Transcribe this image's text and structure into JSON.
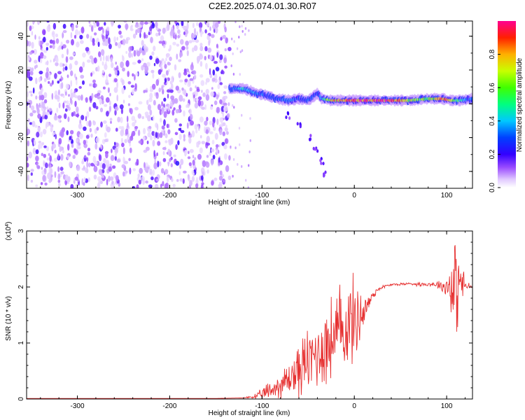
{
  "title": "C2E2.2025.074.01.30.R07",
  "chart_data": [
    {
      "type": "heatmap",
      "title": "C2E2.2025.074.01.30.R07",
      "xlabel": "Height of straight line (km)",
      "ylabel": "Frequency (Hz)",
      "xlim": [
        -355,
        128
      ],
      "ylim": [
        -50,
        49
      ],
      "xticks": [
        -300,
        -200,
        -100,
        0,
        100
      ],
      "xtick_labels": [
        "-300",
        "-200",
        "-100",
        "0",
        "100"
      ],
      "yticks": [
        -40,
        -20,
        0,
        20,
        40
      ],
      "ytick_labels": [
        "-40",
        "-20",
        "0",
        "20",
        "40"
      ],
      "noise_region_x": [
        -355,
        -135
      ],
      "ridge": [
        [
          -135,
          9
        ],
        [
          -120,
          9
        ],
        [
          -105,
          6
        ],
        [
          -95,
          5
        ],
        [
          -85,
          3
        ],
        [
          -70,
          2
        ],
        [
          -60,
          3
        ],
        [
          -50,
          2
        ],
        [
          -40,
          6
        ],
        [
          -35,
          3
        ],
        [
          -25,
          2
        ],
        [
          -10,
          2
        ],
        [
          0,
          2
        ],
        [
          20,
          2
        ],
        [
          40,
          2
        ],
        [
          60,
          2
        ],
        [
          80,
          3
        ],
        [
          95,
          3
        ],
        [
          105,
          2
        ],
        [
          115,
          2
        ],
        [
          128,
          3
        ]
      ],
      "ridge_amplitude": [
        0.3,
        0.45,
        0.35,
        0.3,
        0.3,
        0.35,
        0.3,
        0.3,
        0.3,
        0.4,
        0.8,
        0.9,
        0.95,
        0.95,
        0.95,
        0.7,
        0.6,
        0.9,
        0.7,
        0.5,
        0.3
      ],
      "streak": [
        [
          -72,
          -7
        ],
        [
          -60,
          -13
        ],
        [
          -48,
          -20
        ],
        [
          -42,
          -27
        ],
        [
          -36,
          -34
        ],
        [
          -32,
          -42
        ]
      ],
      "colorbar": {
        "label": "Normalized spectral amplitude",
        "range": [
          0,
          1
        ],
        "ticks": [
          0,
          0.2,
          0.4,
          0.6,
          0.8
        ],
        "tick_labels": [
          "0.0",
          "0.2",
          "0.4",
          "0.6",
          "0.8"
        ]
      }
    },
    {
      "type": "line",
      "xlabel": "Height of straight line (km)",
      "ylabel": "SNR (10 * v/v)",
      "y_scale_label": "(x10",
      "y_scale_exp": "4",
      "xlim": [
        -355,
        128
      ],
      "ylim": [
        0,
        3
      ],
      "xticks": [
        -300,
        -200,
        -100,
        0,
        100
      ],
      "xtick_labels": [
        "-300",
        "-200",
        "-100",
        "0",
        "100"
      ],
      "yticks": [
        0,
        1,
        2,
        3
      ],
      "ytick_labels": [
        "0",
        "1",
        "2",
        "3"
      ],
      "color": "#e63030",
      "series": [
        {
          "name": "SNR",
          "x": [
            -355,
            -300,
            -250,
            -200,
            -150,
            -120,
            -105,
            -95,
            -85,
            -75,
            -65,
            -55,
            -45,
            -35,
            -25,
            -15,
            -5,
            0,
            5,
            10,
            15,
            20,
            25,
            30,
            35,
            40,
            50,
            60,
            70,
            80,
            90,
            100,
            105,
            110,
            115,
            120,
            128
          ],
          "values": [
            0.01,
            0.01,
            0.01,
            0.01,
            0.01,
            0.02,
            0.05,
            0.12,
            0.2,
            0.3,
            0.45,
            0.6,
            0.75,
            0.9,
            1.05,
            1.2,
            1.35,
            1.4,
            1.5,
            1.55,
            1.7,
            1.85,
            1.95,
            2.0,
            2.02,
            2.04,
            2.05,
            2.06,
            2.05,
            2.05,
            2.05,
            2.0,
            2.1,
            1.95,
            2.1,
            2.02,
            2.0
          ],
          "noise_amplitude": [
            0,
            0,
            0,
            0,
            0,
            0,
            0.05,
            0.12,
            0.2,
            0.25,
            0.35,
            0.45,
            0.5,
            0.6,
            0.65,
            0.7,
            0.7,
            0.6,
            0.5,
            0.3,
            0.15,
            0.08,
            0.04,
            0.03,
            0.02,
            0.02,
            0.02,
            0.02,
            0.03,
            0.03,
            0.05,
            0.15,
            0.6,
            0.7,
            0.4,
            0.1,
            0.02
          ]
        }
      ]
    }
  ]
}
